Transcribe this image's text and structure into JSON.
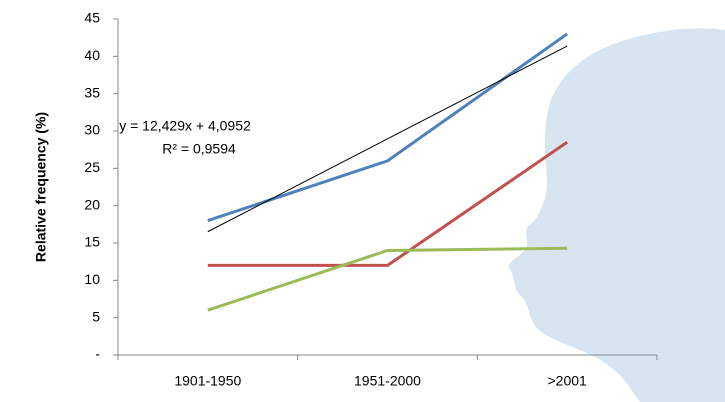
{
  "chart_data": {
    "type": "line",
    "y_label": "Relative frequency (%)",
    "categories": [
      "1901-1950",
      "1951-2000",
      ">2001"
    ],
    "series": [
      {
        "color": "#4f81bd",
        "values": [
          18,
          26,
          43
        ]
      },
      {
        "color": "#c0504d",
        "values": [
          12,
          12,
          28.5
        ]
      },
      {
        "color": "#9bbb59",
        "values": [
          6,
          14,
          14.3
        ]
      }
    ],
    "trendline": {
      "slope": 12.429,
      "intercept": 4.0952,
      "color": "#000000",
      "equation": "y = 12,429x + 4,0952",
      "r_squared": "R² = 0,9594"
    },
    "ylim": [
      0,
      45
    ],
    "yticks": [
      {
        "value": 0,
        "label": "-"
      },
      5,
      10,
      15,
      20,
      25,
      30,
      35,
      40,
      45
    ],
    "grid": false
  }
}
